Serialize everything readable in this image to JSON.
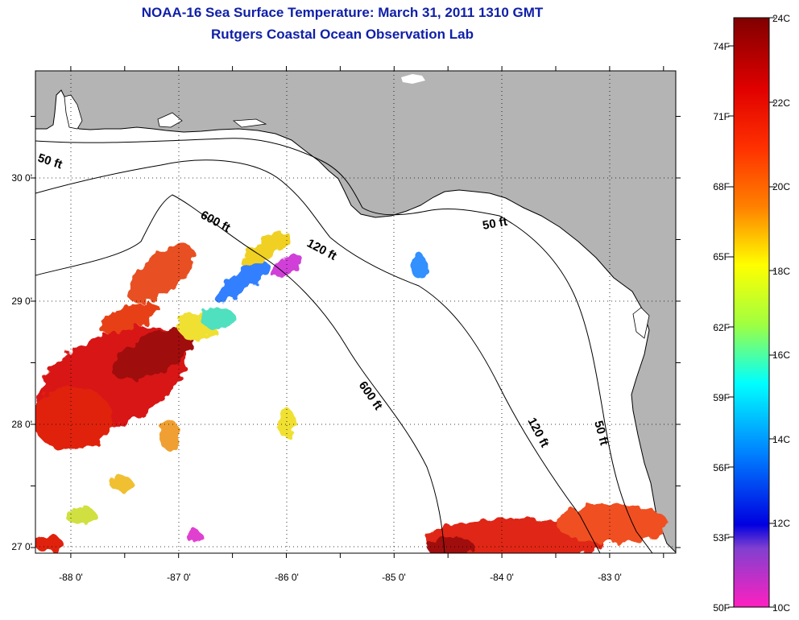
{
  "header": {
    "title": "NOAA-16 Sea Surface Temperature:  March 31, 2011 1310 GMT",
    "subtitle": "Rutgers Coastal Ocean Observation Lab"
  },
  "map": {
    "lon_ticks": [
      "-88 0'",
      "-87 0'",
      "-86 0'",
      "-85 0'",
      "-84 0'",
      "-83 0'"
    ],
    "lat_ticks": [
      "30 0'",
      "29 0'",
      "28 0'",
      "27 0'"
    ],
    "contour_labels": [
      "50 ft",
      "600 ft",
      "120 ft",
      "50 ft",
      "600 ft",
      "120 ft",
      "50 ft"
    ],
    "land_color": "#b4b4b4",
    "ocean_color": "#ffffff"
  },
  "colorbar": {
    "celsius_labels": [
      "24C",
      "22C",
      "20C",
      "18C",
      "16C",
      "14C",
      "12C",
      "10C"
    ],
    "fahrenheit_labels": [
      "74F",
      "71F",
      "68F",
      "65F",
      "62F",
      "59F",
      "56F",
      "53F",
      "50F"
    ]
  }
}
